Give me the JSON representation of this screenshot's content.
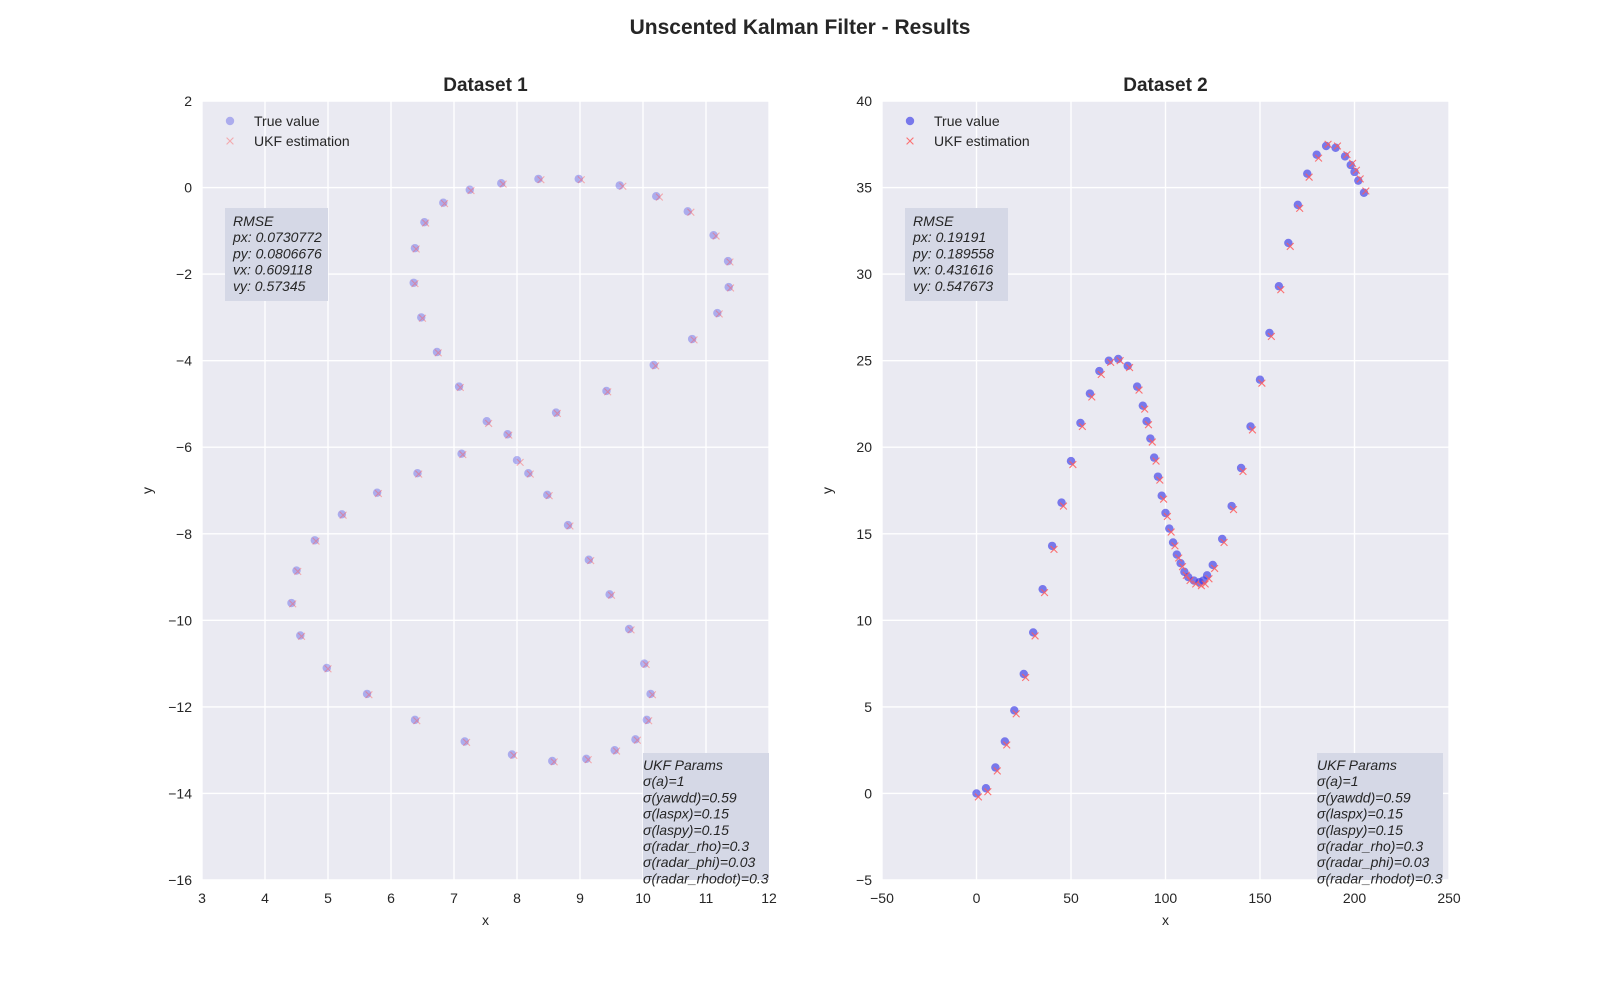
{
  "figure_title": "Unscented Kalman Filter - Results",
  "chart_data": [
    {
      "type": "scatter",
      "title": "Dataset 1",
      "xlabel": "x",
      "ylabel": "y",
      "xlim": [
        3,
        12
      ],
      "ylim": [
        -16,
        2
      ],
      "xticks": [
        3,
        4,
        5,
        6,
        7,
        8,
        9,
        10,
        11,
        12
      ],
      "yticks": [
        2,
        0,
        -2,
        -4,
        -6,
        -8,
        -10,
        -12,
        -14,
        -16
      ],
      "xtick_labels": [
        "3",
        "4",
        "5",
        "6",
        "7",
        "8",
        "9",
        "10",
        "11",
        "12"
      ],
      "ytick_labels": [
        "2",
        "0",
        "−2",
        "−4",
        "−6",
        "−8",
        "−10",
        "−12",
        "−14",
        "−16"
      ],
      "grid": true,
      "legend_position": "top-left",
      "series": [
        {
          "name": "True value",
          "marker": "circle",
          "color": "#3a3ae6",
          "opacity": 0.35,
          "x": [
            8.0,
            7.52,
            7.08,
            6.73,
            6.48,
            6.36,
            6.38,
            6.53,
            6.83,
            7.25,
            7.75,
            8.34,
            8.98,
            9.63,
            10.21,
            10.71,
            11.12,
            11.35,
            11.36,
            11.18,
            10.78,
            10.17,
            9.42,
            8.62,
            7.85,
            7.12,
            6.42,
            5.78,
            5.22,
            4.79,
            4.5,
            4.42,
            4.56,
            4.98,
            5.62,
            6.38,
            7.17,
            7.92,
            8.56,
            9.1,
            9.55,
            9.88,
            10.06,
            10.12,
            10.02,
            9.78,
            9.47,
            9.14,
            8.81,
            8.48,
            8.18
          ],
          "y": [
            -6.3,
            -5.4,
            -4.6,
            -3.8,
            -3.0,
            -2.2,
            -1.4,
            -0.8,
            -0.35,
            -0.05,
            0.1,
            0.2,
            0.2,
            0.05,
            -0.2,
            -0.55,
            -1.1,
            -1.7,
            -2.3,
            -2.9,
            -3.5,
            -4.1,
            -4.7,
            -5.2,
            -5.7,
            -6.15,
            -6.6,
            -7.05,
            -7.55,
            -8.15,
            -8.85,
            -9.6,
            -10.35,
            -11.1,
            -11.7,
            -12.3,
            -12.8,
            -13.1,
            -13.25,
            -13.2,
            -13.0,
            -12.75,
            -12.3,
            -11.7,
            -11.0,
            -10.2,
            -9.4,
            -8.6,
            -7.8,
            -7.1,
            -6.6
          ]
        },
        {
          "name": "UKF estimation",
          "marker": "x",
          "color": "#ff5a5a",
          "opacity": 0.45,
          "x": [
            8.05,
            7.55,
            7.1,
            6.75,
            6.5,
            6.38,
            6.4,
            6.55,
            6.85,
            7.27,
            7.78,
            8.38,
            9.02,
            9.68,
            10.26,
            10.76,
            11.16,
            11.38,
            11.39,
            11.21,
            10.81,
            10.2,
            9.44,
            8.64,
            7.87,
            7.14,
            6.44,
            5.8,
            5.24,
            4.81,
            4.52,
            4.44,
            4.58,
            5.0,
            5.65,
            6.41,
            7.2,
            7.95,
            8.59,
            9.13,
            9.58,
            9.91,
            10.09,
            10.15,
            10.05,
            9.81,
            9.5,
            9.17,
            8.84,
            8.51,
            8.21
          ],
          "y": [
            -6.35,
            -5.45,
            -4.62,
            -3.82,
            -3.02,
            -2.22,
            -1.42,
            -0.82,
            -0.37,
            -0.07,
            0.08,
            0.18,
            0.18,
            0.03,
            -0.22,
            -0.57,
            -1.12,
            -1.72,
            -2.32,
            -2.92,
            -3.52,
            -4.12,
            -4.72,
            -5.22,
            -5.72,
            -6.17,
            -6.62,
            -7.07,
            -7.57,
            -8.17,
            -8.87,
            -9.62,
            -10.37,
            -11.12,
            -11.72,
            -12.32,
            -12.82,
            -13.12,
            -13.27,
            -13.22,
            -13.02,
            -12.77,
            -12.32,
            -11.72,
            -11.02,
            -10.22,
            -9.42,
            -8.62,
            -7.82,
            -7.12,
            -6.62
          ]
        }
      ],
      "rmse_box": {
        "position": "upper-left",
        "lines": [
          "RMSE",
          "px: 0.0730772",
          "py: 0.0806676",
          "vx: 0.609118",
          "vy: 0.57345"
        ]
      },
      "params_box": {
        "position": "lower-right",
        "lines": [
          "UKF Params",
          "σ(a)=1",
          "σ(yawdd)=0.59",
          "σ(laspx)=0.15",
          "σ(laspy)=0.15",
          "σ(radar_rho)=0.3",
          "σ(radar_phi)=0.03",
          "σ(radar_rhodot)=0.3"
        ]
      }
    },
    {
      "type": "scatter",
      "title": "Dataset 2",
      "xlabel": "x",
      "ylabel": "y",
      "xlim": [
        -50,
        250
      ],
      "ylim": [
        -5,
        40
      ],
      "xticks": [
        -50,
        0,
        50,
        100,
        150,
        200,
        250
      ],
      "yticks": [
        40,
        35,
        30,
        25,
        20,
        15,
        10,
        5,
        0,
        -5
      ],
      "xtick_labels": [
        "−50",
        "0",
        "50",
        "100",
        "150",
        "200",
        "250"
      ],
      "ytick_labels": [
        "40",
        "35",
        "30",
        "25",
        "20",
        "15",
        "10",
        "5",
        "0",
        "−5"
      ],
      "grid": true,
      "legend_position": "top-left",
      "series": [
        {
          "name": "True value",
          "marker": "circle",
          "color": "#3a3ae6",
          "opacity": 0.65,
          "x": [
            0,
            5,
            10,
            15,
            20,
            25,
            30,
            35,
            40,
            45,
            50,
            55,
            60,
            65,
            70,
            75,
            80,
            85,
            88,
            90,
            92,
            94,
            96,
            98,
            100,
            102,
            104,
            106,
            108,
            110,
            112,
            115,
            118,
            120,
            122,
            125,
            130,
            135,
            140,
            145,
            150,
            155,
            160,
            165,
            170,
            175,
            180,
            185,
            190,
            195,
            198,
            200,
            202,
            205
          ],
          "y": [
            0.0,
            0.3,
            1.5,
            3.0,
            4.8,
            6.9,
            9.3,
            11.8,
            14.3,
            16.8,
            19.2,
            21.4,
            23.1,
            24.4,
            25.0,
            25.1,
            24.7,
            23.5,
            22.4,
            21.5,
            20.5,
            19.4,
            18.3,
            17.2,
            16.2,
            15.3,
            14.5,
            13.8,
            13.3,
            12.8,
            12.5,
            12.3,
            12.2,
            12.3,
            12.6,
            13.2,
            14.7,
            16.6,
            18.8,
            21.2,
            23.9,
            26.6,
            29.3,
            31.8,
            34.0,
            35.8,
            36.9,
            37.4,
            37.3,
            36.8,
            36.3,
            35.9,
            35.4,
            34.7
          ]
        },
        {
          "name": "UKF estimation",
          "marker": "x",
          "color": "#ff5a5a",
          "opacity": 0.85,
          "x": [
            1,
            6,
            11,
            16,
            21,
            26,
            31,
            36,
            41,
            46,
            51,
            56,
            61,
            66,
            71,
            76,
            81,
            86,
            89,
            91,
            93,
            95,
            97,
            99,
            101,
            103,
            105,
            107,
            109,
            111,
            113,
            116,
            119,
            121,
            123,
            126,
            131,
            136,
            141,
            146,
            151,
            156,
            161,
            166,
            171,
            176,
            181,
            186,
            191,
            196,
            199,
            201,
            203,
            206
          ],
          "y": [
            -0.2,
            0.1,
            1.3,
            2.8,
            4.6,
            6.7,
            9.1,
            11.6,
            14.1,
            16.6,
            19.0,
            21.2,
            22.9,
            24.2,
            24.9,
            25.0,
            24.6,
            23.3,
            22.2,
            21.3,
            20.3,
            19.2,
            18.1,
            17.0,
            16.0,
            15.1,
            14.3,
            13.6,
            13.1,
            12.6,
            12.3,
            12.1,
            12.0,
            12.1,
            12.4,
            13.0,
            14.5,
            16.4,
            18.6,
            21.0,
            23.7,
            26.4,
            29.1,
            31.6,
            33.8,
            35.6,
            36.7,
            37.5,
            37.4,
            36.9,
            36.4,
            36.0,
            35.5,
            34.8
          ]
        }
      ],
      "rmse_box": {
        "position": "upper-left",
        "lines": [
          "RMSE",
          "px: 0.19191",
          "py: 0.189558",
          "vx: 0.431616",
          "vy: 0.547673"
        ]
      },
      "params_box": {
        "position": "lower-right",
        "lines": [
          "UKF Params",
          "σ(a)=1",
          "σ(yawdd)=0.59",
          "σ(laspx)=0.15",
          "σ(laspy)=0.15",
          "σ(radar_rho)=0.3",
          "σ(radar_phi)=0.03",
          "σ(radar_rhodot)=0.3"
        ]
      }
    }
  ],
  "colors": {
    "plot_background": "#eaeaf2",
    "grid": "#ffffff",
    "text_box": "#d5d8e6"
  }
}
